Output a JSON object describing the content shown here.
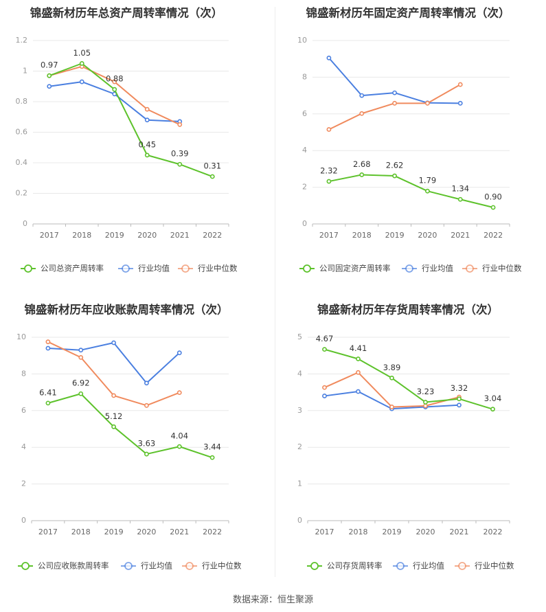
{
  "source_text": "数据来源：恒生聚源",
  "colors": {
    "company": "#5dc22b",
    "avg": "#4a7fe0",
    "median": "#f08a5d",
    "axis": "#999999",
    "grid": "#e8e8e8",
    "text": "#333333"
  },
  "chart_data": [
    {
      "type": "line",
      "title": "锦盛新材历年总资产周转率情况（次）",
      "categories": [
        "2017",
        "2018",
        "2019",
        "2020",
        "2021",
        "2022"
      ],
      "ylim": [
        0,
        1.2
      ],
      "yticks": [
        "0",
        "0.2",
        "0.4",
        "0.6",
        "0.8",
        "1",
        "1.2"
      ],
      "series": [
        {
          "name": "公司总资产周转率",
          "role": "company",
          "values": [
            0.97,
            1.05,
            0.88,
            0.45,
            0.39,
            0.31
          ],
          "labels": [
            "0.97",
            "1.05",
            "0.88",
            "0.45",
            "0.39",
            "0.31"
          ]
        },
        {
          "name": "行业均值",
          "role": "avg",
          "values": [
            0.9,
            0.93,
            0.85,
            0.68,
            0.67,
            null
          ]
        },
        {
          "name": "行业中位数",
          "role": "median",
          "values": [
            0.97,
            1.03,
            0.93,
            0.75,
            0.65,
            null
          ]
        }
      ]
    },
    {
      "type": "line",
      "title": "锦盛新材历年固定资产周转率情况（次）",
      "categories": [
        "2017",
        "2018",
        "2019",
        "2020",
        "2021",
        "2022"
      ],
      "ylim": [
        0,
        10
      ],
      "yticks": [
        "0",
        "2",
        "4",
        "6",
        "8",
        "10"
      ],
      "series": [
        {
          "name": "公司固定资产周转率",
          "role": "company",
          "values": [
            2.32,
            2.68,
            2.62,
            1.79,
            1.34,
            0.9
          ],
          "labels": [
            "2.32",
            "2.68",
            "2.62",
            "1.79",
            "1.34",
            "0.90"
          ]
        },
        {
          "name": "行业均值",
          "role": "avg",
          "values": [
            9.05,
            7.0,
            7.15,
            6.6,
            6.58,
            null
          ]
        },
        {
          "name": "行业中位数",
          "role": "median",
          "values": [
            5.15,
            6.02,
            6.58,
            6.58,
            7.6,
            null
          ]
        }
      ]
    },
    {
      "type": "line",
      "title": "锦盛新材历年应收账款周转率情况（次）",
      "categories": [
        "2017",
        "2018",
        "2019",
        "2020",
        "2021",
        "2022"
      ],
      "ylim": [
        0,
        10
      ],
      "yticks": [
        "0",
        "2",
        "4",
        "6",
        "8",
        "10"
      ],
      "series": [
        {
          "name": "公司应收账款周转率",
          "role": "company",
          "values": [
            6.41,
            6.92,
            5.12,
            3.63,
            4.04,
            3.44
          ],
          "labels": [
            "6.41",
            "6.92",
            "5.12",
            "3.63",
            "4.04",
            "3.44"
          ]
        },
        {
          "name": "行业均值",
          "role": "avg",
          "values": [
            9.4,
            9.3,
            9.7,
            7.5,
            9.15,
            null
          ]
        },
        {
          "name": "行业中位数",
          "role": "median",
          "values": [
            9.75,
            8.9,
            6.82,
            6.28,
            6.98,
            null
          ]
        }
      ]
    },
    {
      "type": "line",
      "title": "锦盛新材历年存货周转率情况（次）",
      "categories": [
        "2017",
        "2018",
        "2019",
        "2020",
        "2021",
        "2022"
      ],
      "ylim": [
        0,
        5
      ],
      "yticks": [
        "0",
        "1",
        "2",
        "3",
        "4",
        "5"
      ],
      "series": [
        {
          "name": "公司存货周转率",
          "role": "company",
          "values": [
            4.67,
            4.41,
            3.89,
            3.23,
            3.32,
            3.04
          ],
          "labels": [
            "4.67",
            "4.41",
            "3.89",
            "3.23",
            "3.32",
            "3.04"
          ]
        },
        {
          "name": "行业均值",
          "role": "avg",
          "values": [
            3.4,
            3.52,
            3.05,
            3.1,
            3.15,
            null
          ]
        },
        {
          "name": "行业中位数",
          "role": "median",
          "values": [
            3.63,
            4.04,
            3.1,
            3.13,
            3.37,
            null
          ]
        }
      ]
    }
  ]
}
